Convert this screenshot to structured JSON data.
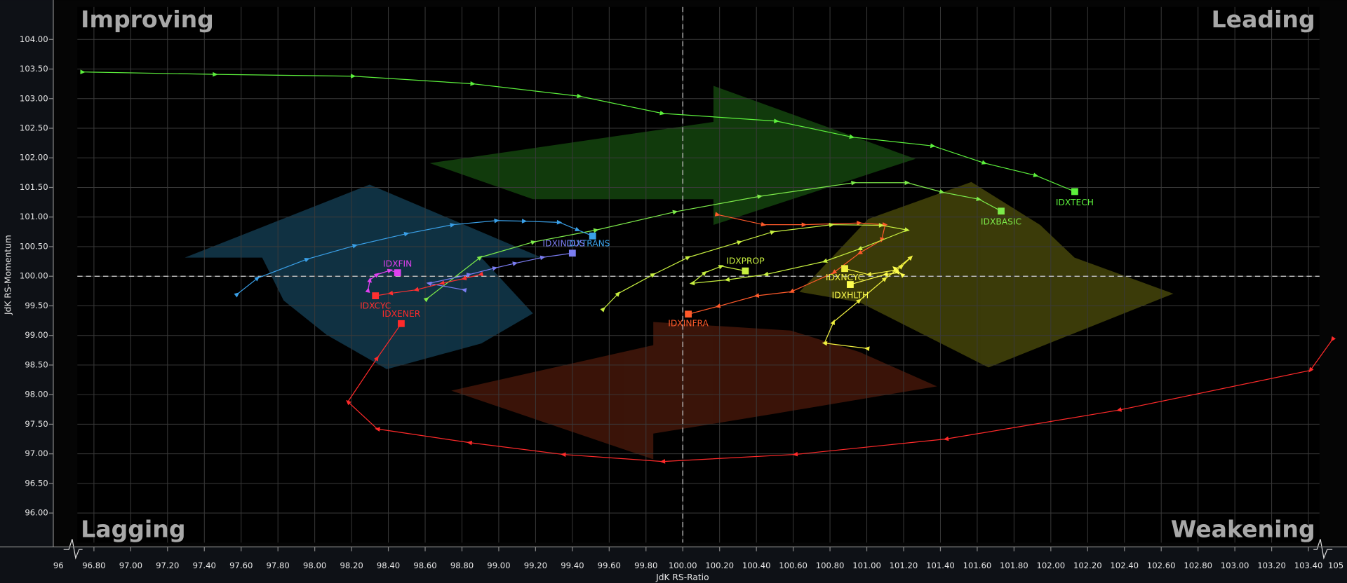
{
  "chart_data": {
    "type": "line",
    "quadrant_labels": {
      "top_left": "Improving",
      "top_right": "Leading",
      "bottom_left": "Lagging",
      "bottom_right": "Weakening"
    },
    "x_label": "JdK RS-Ratio",
    "y_label": "JdK RS-Momentum",
    "xlim": [
      96.71,
      103.46
    ],
    "ylim": [
      95.5,
      104.55
    ],
    "x_axis_ends": [
      96,
      105
    ],
    "center": [
      100,
      100
    ],
    "grid": true,
    "xticks": [
      {
        "value": 96.8,
        "label": "96.80"
      },
      {
        "value": 97,
        "label": "97.00"
      },
      {
        "value": 97.2,
        "label": "97.20"
      },
      {
        "value": 97.4,
        "label": "97.40"
      },
      {
        "value": 97.6,
        "label": "97.60"
      },
      {
        "value": 97.8,
        "label": "97.80"
      },
      {
        "value": 98,
        "label": "98.00"
      },
      {
        "value": 98.2,
        "label": "98.20"
      },
      {
        "value": 98.4,
        "label": "98.40"
      },
      {
        "value": 98.6,
        "label": "98.60"
      },
      {
        "value": 98.8,
        "label": "98.80"
      },
      {
        "value": 99,
        "label": "99.00"
      },
      {
        "value": 99.2,
        "label": "99.20"
      },
      {
        "value": 99.4,
        "label": "99.40"
      },
      {
        "value": 99.6,
        "label": "99.60"
      },
      {
        "value": 99.8,
        "label": "99.80"
      },
      {
        "value": 100,
        "label": "100.00"
      },
      {
        "value": 100.2,
        "label": "100.20"
      },
      {
        "value": 100.4,
        "label": "100.40"
      },
      {
        "value": 100.6,
        "label": "100.60"
      },
      {
        "value": 100.8,
        "label": "100.80"
      },
      {
        "value": 101,
        "label": "101.00"
      },
      {
        "value": 101.2,
        "label": "101.20"
      },
      {
        "value": 101.4,
        "label": "101.40"
      },
      {
        "value": 101.6,
        "label": "101.60"
      },
      {
        "value": 101.8,
        "label": "101.80"
      },
      {
        "value": 102,
        "label": "102.00"
      },
      {
        "value": 102.2,
        "label": "102.20"
      },
      {
        "value": 102.4,
        "label": "102.40"
      },
      {
        "value": 102.6,
        "label": "102.60"
      },
      {
        "value": 102.8,
        "label": "102.80"
      },
      {
        "value": 103,
        "label": "103.00"
      },
      {
        "value": 103.2,
        "label": "103.20"
      },
      {
        "value": 103.4,
        "label": "103.40"
      }
    ],
    "yticks": [
      {
        "value": 96,
        "label": "96.00"
      },
      {
        "value": 96.5,
        "label": "96.50"
      },
      {
        "value": 97,
        "label": "97.00"
      },
      {
        "value": 97.5,
        "label": "97.50"
      },
      {
        "value": 98,
        "label": "98.00"
      },
      {
        "value": 98.5,
        "label": "98.50"
      },
      {
        "value": 99,
        "label": "99.00"
      },
      {
        "value": 99.5,
        "label": "99.50"
      },
      {
        "value": 100,
        "label": "100.00"
      },
      {
        "value": 100.5,
        "label": "100.50"
      },
      {
        "value": 101,
        "label": "101.00"
      },
      {
        "value": 101.5,
        "label": "101.50"
      },
      {
        "value": 102,
        "label": "102.00"
      },
      {
        "value": 102.5,
        "label": "102.50"
      },
      {
        "value": 103,
        "label": "103.00"
      },
      {
        "value": 103.5,
        "label": "103.50"
      },
      {
        "value": 104,
        "label": "104.00"
      }
    ],
    "series": [
      {
        "name": "IDXTECH",
        "color": "#5cf03c",
        "x": [
          96.74,
          97.46,
          98.21,
          98.86,
          99.44,
          99.89,
          100.51,
          100.92,
          101.36,
          101.64,
          101.92,
          102.13
        ],
        "values": [
          103.45,
          103.41,
          103.38,
          103.25,
          103.04,
          102.75,
          102.62,
          102.35,
          102.2,
          101.91,
          101.7,
          101.43
        ]
      },
      {
        "name": "IDXBASIC",
        "color": "#7dea4a",
        "x": [
          98.61,
          98.9,
          99.19,
          99.53,
          99.96,
          100.42,
          100.93,
          101.22,
          101.41,
          101.61,
          101.73
        ],
        "values": [
          99.62,
          100.32,
          100.58,
          100.78,
          101.09,
          101.35,
          101.58,
          101.58,
          101.42,
          101.3,
          101.1
        ]
      },
      {
        "name": "IDXTRANS",
        "color": "#3aa0e8",
        "x": [
          97.58,
          97.69,
          97.96,
          98.22,
          98.5,
          98.75,
          98.99,
          99.14,
          99.33,
          99.43,
          99.51
        ],
        "values": [
          99.7,
          99.97,
          100.29,
          100.52,
          100.72,
          100.87,
          100.94,
          100.93,
          100.91,
          100.78,
          100.68
        ]
      },
      {
        "name": "IDXINDUS",
        "color": "#7a7cf0",
        "x": [
          98.81,
          98.62,
          98.84,
          98.98,
          99.09,
          99.24,
          99.4
        ],
        "values": [
          99.77,
          99.88,
          100.03,
          100.14,
          100.22,
          100.32,
          100.39
        ]
      },
      {
        "name": "IDXFIN",
        "color": "#e040f0",
        "x": [
          98.29,
          98.3,
          98.34,
          98.41,
          98.45
        ],
        "values": [
          99.77,
          99.94,
          100.03,
          100.1,
          100.06
        ]
      },
      {
        "name": "IDXCYC",
        "color": "#ff3030",
        "x": [
          98.9,
          98.81,
          98.69,
          98.55,
          98.41,
          98.33
        ],
        "values": [
          100.03,
          99.96,
          99.88,
          99.77,
          99.71,
          99.67
        ]
      },
      {
        "name": "IDXENER",
        "color": "#ff2a2a",
        "x": [
          103.53,
          103.41,
          102.37,
          101.43,
          100.61,
          99.89,
          99.35,
          98.84,
          98.34,
          98.18,
          98.34,
          98.47
        ],
        "values": [
          98.93,
          98.41,
          97.74,
          97.25,
          96.99,
          96.87,
          96.99,
          97.19,
          97.42,
          97.88,
          98.62,
          99.2
        ]
      },
      {
        "name": "IDXINFRA",
        "color": "#ff5a2a",
        "x": [
          100.19,
          100.44,
          100.66,
          100.96,
          101.1,
          101.08,
          100.96,
          100.82,
          100.59,
          100.4,
          100.19,
          100.03
        ],
        "values": [
          101.04,
          100.87,
          100.87,
          100.9,
          100.87,
          100.61,
          100.39,
          100.06,
          99.74,
          99.67,
          99.49,
          99.36
        ]
      },
      {
        "name": "IDXPROP",
        "color": "#c8f040",
        "x": [
          99.57,
          99.65,
          99.84,
          100.03,
          100.31,
          100.49,
          100.81,
          101.08,
          101.22,
          100.96,
          100.77,
          100.45,
          100.24,
          100.05,
          100.12,
          100.21,
          100.34
        ],
        "values": [
          99.45,
          99.71,
          100.03,
          100.32,
          100.58,
          100.75,
          100.87,
          100.86,
          100.78,
          100.46,
          100.25,
          100.03,
          99.94,
          99.88,
          100.06,
          100.17,
          100.09
        ]
      },
      {
        "name": "IDXNCYC",
        "color": "#f0f040",
        "x": [
          101.0,
          100.77,
          100.82,
          100.96,
          101.1,
          101.19,
          101.24,
          101.15,
          101.01,
          100.88
        ],
        "values": [
          98.78,
          98.87,
          99.23,
          99.59,
          99.96,
          100.17,
          100.32,
          100.1,
          100.03,
          100.13
        ]
      },
      {
        "name": "IDXHLTH",
        "color": "#ffff50",
        "x": [
          101.19,
          101.15,
          101.17,
          101.1,
          100.91
        ],
        "values": [
          100.03,
          100.14,
          100.06,
          100.03,
          99.86
        ]
      }
    ]
  }
}
